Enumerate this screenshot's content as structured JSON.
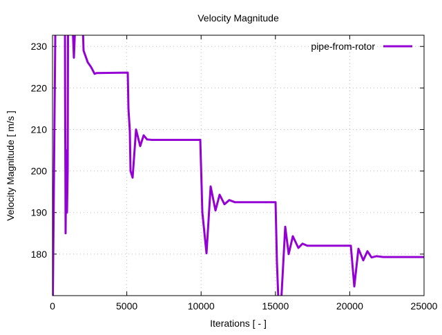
{
  "chart_data": {
    "type": "line",
    "title": "Velocity Magnitude",
    "xlabel": "Iterations [ - ]",
    "ylabel": "Velocity Magnitude [ m/s ]",
    "xlim": [
      0,
      25000
    ],
    "ylim": [
      170.0,
      232.7
    ],
    "xticks": [
      0,
      5000,
      10000,
      15000,
      20000,
      25000
    ],
    "xtick_labels": [
      "0",
      "5000",
      "10000",
      "15000",
      "20000",
      "25000"
    ],
    "yticks": [
      180,
      190,
      200,
      210,
      220,
      230
    ],
    "ytick_labels": [
      "180",
      "190",
      "200",
      "210",
      "220",
      "230"
    ],
    "grid": true,
    "legend_position": "top-right",
    "series": [
      {
        "name": "pipe-from-rotor",
        "color": "#9400d3",
        "points": [
          [
            0,
            160
          ],
          [
            186,
            232
          ],
          [
            186,
            240
          ],
          [
            836,
            240
          ],
          [
            850,
            218
          ],
          [
            870,
            200
          ],
          [
            883,
            185
          ],
          [
            930,
            205
          ],
          [
            976,
            190
          ],
          [
            1022,
            200
          ],
          [
            1050,
            240
          ],
          [
            1300,
            240
          ],
          [
            1440,
            227.3
          ],
          [
            1580,
            240
          ],
          [
            2000,
            240
          ],
          [
            2091,
            229
          ],
          [
            2370,
            226.2
          ],
          [
            2600,
            225
          ],
          [
            2835,
            223.4
          ],
          [
            2974,
            223.6
          ],
          [
            5065,
            223.7
          ],
          [
            5112,
            215
          ],
          [
            5205,
            209.6
          ],
          [
            5251,
            200
          ],
          [
            5391,
            198.4
          ],
          [
            5623,
            210
          ],
          [
            5902,
            206
          ],
          [
            6134,
            208.6
          ],
          [
            6366,
            207.6
          ],
          [
            6692,
            207.5
          ],
          [
            9945,
            207.5
          ],
          [
            10038,
            196
          ],
          [
            10084,
            190
          ],
          [
            10363,
            180.2
          ],
          [
            10642,
            196.3
          ],
          [
            10967,
            190.5
          ],
          [
            11246,
            194.3
          ],
          [
            11571,
            192
          ],
          [
            11896,
            193
          ],
          [
            12268,
            192.5
          ],
          [
            15010,
            192.5
          ],
          [
            15103,
            178
          ],
          [
            15242,
            165
          ],
          [
            15335,
            165
          ],
          [
            15660,
            186.6
          ],
          [
            15893,
            180
          ],
          [
            16172,
            184.3
          ],
          [
            16544,
            181.5
          ],
          [
            16823,
            182.5
          ],
          [
            17147,
            182
          ],
          [
            20075,
            182
          ],
          [
            20307,
            172.2
          ],
          [
            20586,
            181.3
          ],
          [
            20912,
            178.5
          ],
          [
            21191,
            180.7
          ],
          [
            21470,
            179.2
          ],
          [
            21795,
            179.5
          ],
          [
            22260,
            179.3
          ],
          [
            25000,
            179.3
          ]
        ]
      }
    ]
  }
}
